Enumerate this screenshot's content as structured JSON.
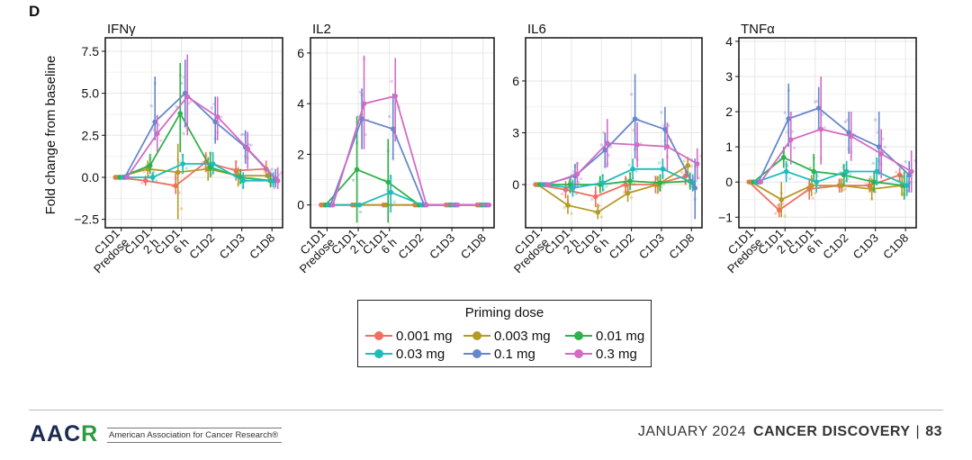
{
  "panel_label": "D",
  "y_axis_title": "Fold change from baseline",
  "legend": {
    "title": "Priming dose",
    "entries": [
      {
        "label": "0.001 mg",
        "color": "#ef6f62"
      },
      {
        "label": "0.003 mg",
        "color": "#b59a27"
      },
      {
        "label": "0.01 mg",
        "color": "#2fb24a"
      },
      {
        "label": "0.03 mg",
        "color": "#1fbcbc"
      },
      {
        "label": "0.1 mg",
        "color": "#6588cc"
      },
      {
        "label": "0.3 mg",
        "color": "#d36bc6"
      }
    ]
  },
  "chart_data": [
    {
      "type": "line",
      "title": "IFNγ",
      "categories": [
        "C1D1 Predose",
        "C1D1 2 h",
        "C1D1 6 h",
        "C1D2",
        "C1D3",
        "C1D8"
      ],
      "y_ticks": [
        -2.5,
        0.0,
        2.5,
        5.0,
        7.5
      ],
      "y_tick_labels": [
        "−2.5",
        "0.0",
        "2.5",
        "5.0",
        "7.5"
      ],
      "ylim": [
        -3.0,
        8.3
      ],
      "series": [
        {
          "name": "0.001 mg",
          "values": [
            0,
            -0.2,
            -0.5,
            0.9,
            0.4,
            0.5
          ],
          "ci": [
            [
              0,
              0
            ],
            [
              -0.5,
              0.1
            ],
            [
              -1.0,
              0.3
            ],
            [
              0.3,
              1.5
            ],
            [
              -0.2,
              1.0
            ],
            [
              0,
              1.0
            ]
          ]
        },
        {
          "name": "0.003 mg",
          "values": [
            0,
            0.5,
            0.3,
            0.5,
            0.1,
            0.1
          ],
          "ci": [
            [
              0,
              0
            ],
            [
              0,
              1.0
            ],
            [
              -2.5,
              2.0
            ],
            [
              -0.2,
              1.2
            ],
            [
              -0.5,
              0.6
            ],
            [
              -0.3,
              0.5
            ]
          ]
        },
        {
          "name": "0.01 mg",
          "values": [
            0,
            0.7,
            3.8,
            0.6,
            0,
            -0.2
          ],
          "ci": [
            [
              0,
              0
            ],
            [
              0.2,
              1.4
            ],
            [
              1.5,
              6.8
            ],
            [
              0,
              1.5
            ],
            [
              -0.4,
              0.5
            ],
            [
              -0.6,
              0.2
            ]
          ]
        },
        {
          "name": "0.03 mg",
          "values": [
            0,
            0,
            0.8,
            0.8,
            -0.2,
            -0.2
          ],
          "ci": [
            [
              0,
              0
            ],
            [
              -0.3,
              0.3
            ],
            [
              0.2,
              1.4
            ],
            [
              0.2,
              1.5
            ],
            [
              -0.7,
              0.3
            ],
            [
              -0.6,
              0.3
            ]
          ]
        },
        {
          "name": "0.1 mg",
          "values": [
            0,
            3.3,
            5.0,
            3.3,
            1.8,
            -0.1
          ],
          "ci": [
            [
              0,
              0
            ],
            [
              2.2,
              6.0
            ],
            [
              3.0,
              7.0
            ],
            [
              2.0,
              4.8
            ],
            [
              0.8,
              2.8
            ],
            [
              -0.6,
              0.5
            ]
          ]
        },
        {
          "name": "0.3 mg",
          "values": [
            0,
            2.6,
            4.8,
            3.6,
            1.7,
            -0.2
          ],
          "ci": [
            [
              0,
              0
            ],
            [
              1.5,
              3.7
            ],
            [
              2.5,
              7.3
            ],
            [
              2.2,
              4.8
            ],
            [
              0.5,
              2.7
            ],
            [
              -0.7,
              0.6
            ]
          ]
        }
      ]
    },
    {
      "type": "line",
      "title": "IL2",
      "categories": [
        "C1D1 Predose",
        "C1D1 2 h",
        "C1D1 6 h",
        "C1D2",
        "C1D3",
        "C1D8"
      ],
      "y_ticks": [
        0,
        2,
        4,
        6
      ],
      "y_tick_labels": [
        "0",
        "2",
        "4",
        "6"
      ],
      "ylim": [
        -0.9,
        6.6
      ],
      "series": [
        {
          "name": "0.001 mg",
          "values": [
            0,
            0,
            0,
            0,
            0,
            0
          ],
          "ci": [
            [
              0,
              0
            ],
            [
              0,
              0
            ],
            [
              0,
              0
            ],
            [
              0,
              0
            ],
            [
              0,
              0
            ],
            [
              0,
              0
            ]
          ]
        },
        {
          "name": "0.003 mg",
          "values": [
            0,
            0,
            0,
            0,
            0,
            0
          ],
          "ci": [
            [
              0,
              0
            ],
            [
              0,
              0
            ],
            [
              0,
              0
            ],
            [
              0,
              0
            ],
            [
              0,
              0
            ],
            [
              0,
              0
            ]
          ]
        },
        {
          "name": "0.01 mg",
          "values": [
            0,
            1.4,
            0.9,
            0,
            0,
            0
          ],
          "ci": [
            [
              0,
              0
            ],
            [
              -0.7,
              3.5
            ],
            [
              -0.7,
              2.6
            ],
            [
              0,
              0
            ],
            [
              0,
              0
            ],
            [
              0,
              0
            ]
          ]
        },
        {
          "name": "0.03 mg",
          "values": [
            0,
            0,
            0.5,
            0,
            0,
            0
          ],
          "ci": [
            [
              0,
              0
            ],
            [
              0,
              0
            ],
            [
              -0.3,
              1.2
            ],
            [
              0,
              0
            ],
            [
              0,
              0
            ],
            [
              0,
              0
            ]
          ]
        },
        {
          "name": "0.1 mg",
          "values": [
            0,
            3.4,
            3.0,
            0,
            0,
            0
          ],
          "ci": [
            [
              0,
              0
            ],
            [
              2.2,
              4.6
            ],
            [
              1.8,
              4.4
            ],
            [
              0,
              0
            ],
            [
              0,
              0
            ],
            [
              0,
              0
            ]
          ]
        },
        {
          "name": "0.3 mg",
          "values": [
            0,
            4.0,
            4.3,
            0,
            0,
            0
          ],
          "ci": [
            [
              0,
              0
            ],
            [
              2.2,
              5.9
            ],
            [
              2.5,
              5.8
            ],
            [
              0,
              0
            ],
            [
              0,
              0
            ],
            [
              0,
              0
            ]
          ]
        }
      ]
    },
    {
      "type": "line",
      "title": "IL6",
      "categories": [
        "C1D1 Predose",
        "C1D1 2 h",
        "C1D1 6 h",
        "C1D2",
        "C1D3",
        "C1D8"
      ],
      "y_ticks": [
        0,
        3,
        6
      ],
      "y_tick_labels": [
        "0",
        "3",
        "6"
      ],
      "ylim": [
        -2.5,
        8.5
      ],
      "series": [
        {
          "name": "0.001 mg",
          "values": [
            0,
            -0.3,
            -0.7,
            0,
            0,
            0.5
          ],
          "ci": [
            [
              0,
              0
            ],
            [
              -0.8,
              0.2
            ],
            [
              -1.3,
              -0.1
            ],
            [
              -0.5,
              0.5
            ],
            [
              -0.5,
              0.5
            ],
            [
              0,
              1.0
            ]
          ]
        },
        {
          "name": "0.003 mg",
          "values": [
            0,
            -1.2,
            -1.6,
            -0.5,
            0,
            1.1
          ],
          "ci": [
            [
              0,
              0
            ],
            [
              -1.7,
              -0.6
            ],
            [
              -2.0,
              -1.1
            ],
            [
              -1.0,
              0
            ],
            [
              -0.5,
              0.5
            ],
            [
              0.6,
              1.6
            ]
          ]
        },
        {
          "name": "0.01 mg",
          "values": [
            0,
            0,
            0,
            0.2,
            0.1,
            0.2
          ],
          "ci": [
            [
              0,
              0
            ],
            [
              -0.5,
              0.5
            ],
            [
              -0.5,
              0.5
            ],
            [
              -0.3,
              0.7
            ],
            [
              -0.4,
              0.6
            ],
            [
              -0.3,
              0.7
            ]
          ]
        },
        {
          "name": "0.03 mg",
          "values": [
            0,
            -0.2,
            0.1,
            0.9,
            0.9,
            0.1
          ],
          "ci": [
            [
              0,
              0
            ],
            [
              -0.7,
              0.3
            ],
            [
              -0.4,
              0.6
            ],
            [
              0.3,
              1.5
            ],
            [
              0.3,
              1.5
            ],
            [
              -0.4,
              0.6
            ]
          ]
        },
        {
          "name": "0.1 mg",
          "values": [
            0,
            0.5,
            2.0,
            3.8,
            3.2,
            -0.2
          ],
          "ci": [
            [
              0,
              0
            ],
            [
              -0.2,
              1.2
            ],
            [
              1.0,
              3.0
            ],
            [
              1.5,
              6.4
            ],
            [
              2.0,
              4.5
            ],
            [
              -2.0,
              1.5
            ]
          ]
        },
        {
          "name": "0.3 mg",
          "values": [
            0,
            0.6,
            2.4,
            2.3,
            2.2,
            1.2
          ],
          "ci": [
            [
              0,
              0
            ],
            [
              -0.1,
              1.3
            ],
            [
              1.0,
              3.8
            ],
            [
              1.0,
              3.6
            ],
            [
              0.8,
              3.6
            ],
            [
              0.3,
              2.1
            ]
          ]
        }
      ]
    },
    {
      "type": "line",
      "title": "TNFα",
      "categories": [
        "C1D1 Predose",
        "C1D1 2 h",
        "C1D1 6 h",
        "C1D2",
        "C1D3",
        "C1D8"
      ],
      "y_ticks": [
        -1,
        0,
        1,
        2,
        3,
        4
      ],
      "y_tick_labels": [
        "−1",
        "0",
        "1",
        "2",
        "3",
        "4"
      ],
      "ylim": [
        -1.3,
        4.1
      ],
      "series": [
        {
          "name": "0.001 mg",
          "values": [
            0,
            -0.8,
            -0.2,
            -0.1,
            -0.1,
            0.2
          ],
          "ci": [
            [
              0,
              0
            ],
            [
              -1.0,
              -0.6
            ],
            [
              -0.5,
              0.1
            ],
            [
              -0.3,
              0.1
            ],
            [
              -0.3,
              0.1
            ],
            [
              0,
              0.4
            ]
          ]
        },
        {
          "name": "0.003 mg",
          "values": [
            0,
            -0.5,
            -0.1,
            -0.1,
            -0.2,
            -0.1
          ],
          "ci": [
            [
              0,
              0
            ],
            [
              -1.0,
              0
            ],
            [
              -0.4,
              0.2
            ],
            [
              -0.3,
              0.1
            ],
            [
              -0.5,
              0.1
            ],
            [
              -0.4,
              0.2
            ]
          ]
        },
        {
          "name": "0.01 mg",
          "values": [
            0,
            0.7,
            0.3,
            0.2,
            0,
            -0.1
          ],
          "ci": [
            [
              0,
              0
            ],
            [
              0.4,
              1.0
            ],
            [
              0,
              0.8
            ],
            [
              -0.1,
              0.5
            ],
            [
              -0.3,
              0.3
            ],
            [
              -0.5,
              0.3
            ]
          ]
        },
        {
          "name": "0.03 mg",
          "values": [
            0,
            0.3,
            0,
            0.3,
            0.3,
            -0.1
          ],
          "ci": [
            [
              0,
              0
            ],
            [
              0,
              0.6
            ],
            [
              -0.3,
              0.3
            ],
            [
              0,
              0.6
            ],
            [
              -0.1,
              0.7
            ],
            [
              -0.4,
              0.2
            ]
          ]
        },
        {
          "name": "0.1 mg",
          "values": [
            0,
            1.8,
            2.1,
            1.4,
            1.0,
            0.2
          ],
          "ci": [
            [
              0,
              0
            ],
            [
              1.0,
              2.8
            ],
            [
              1.5,
              2.7
            ],
            [
              0.8,
              2.0
            ],
            [
              0.2,
              2.0
            ],
            [
              -0.3,
              0.6
            ]
          ]
        },
        {
          "name": "0.3 mg",
          "values": [
            0,
            1.2,
            1.5,
            1.3,
            0.8,
            0.3
          ],
          "ci": [
            [
              0,
              0
            ],
            [
              0.5,
              2.0
            ],
            [
              0.5,
              3.0
            ],
            [
              0.6,
              2.0
            ],
            [
              0.1,
              1.5
            ],
            [
              -0.3,
              0.9
            ]
          ]
        }
      ]
    }
  ],
  "footer": {
    "logo_text_a": "AAC",
    "logo_text_b": "R",
    "org_name": "American Association for Cancer Research®",
    "month": "JANUARY 2024",
    "journal_name": "CANCER DISCOVERY",
    "separator": "|",
    "page_number": "83"
  }
}
